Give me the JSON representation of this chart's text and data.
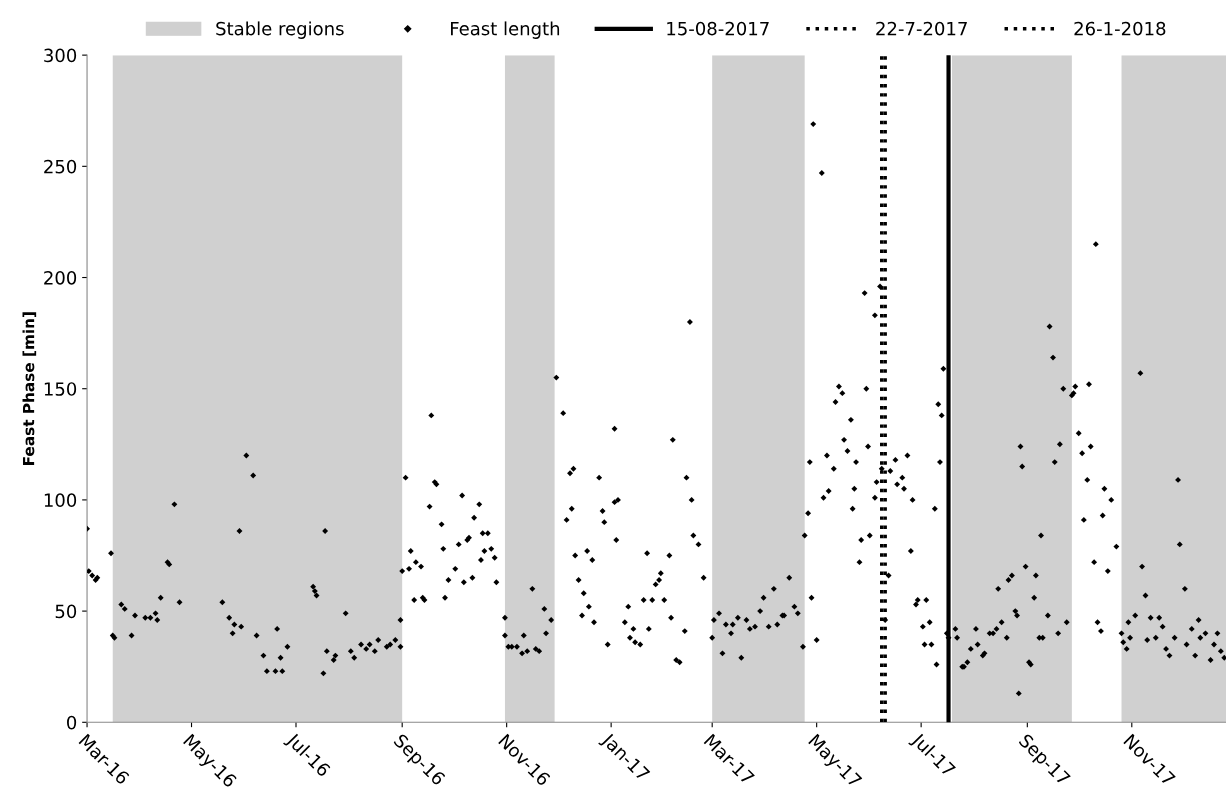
{
  "chart_data": {
    "type": "scatter",
    "ylabel": "Feast Phase [min]",
    "xlim": [
      "2016-03-01",
      "2017-12-26"
    ],
    "ylim": [
      0,
      300
    ],
    "yticks": [
      0,
      50,
      100,
      150,
      200,
      250,
      300
    ],
    "xticks": [
      {
        "value": "2016-03-01",
        "label": "Mar-16"
      },
      {
        "value": "2016-05-01",
        "label": "May-16"
      },
      {
        "value": "2016-07-01",
        "label": "Jul-16"
      },
      {
        "value": "2016-09-01",
        "label": "Sep-16"
      },
      {
        "value": "2016-11-01",
        "label": "Nov-16"
      },
      {
        "value": "2017-01-01",
        "label": "Jan-17"
      },
      {
        "value": "2017-03-01",
        "label": "Mar-17"
      },
      {
        "value": "2017-05-01",
        "label": "May-17"
      },
      {
        "value": "2017-07-01",
        "label": "Jul-17"
      },
      {
        "value": "2017-09-01",
        "label": "Sep-17"
      },
      {
        "value": "2017-11-01",
        "label": "Nov-17"
      }
    ],
    "grid": false,
    "legend": "top",
    "marker": "diamond",
    "bands": [
      {
        "axis": "x",
        "from": "2016-03-16",
        "to": "2016-09-01",
        "label": "Stable regions",
        "color": "#d0d0d0"
      },
      {
        "axis": "x",
        "from": "2016-10-31",
        "to": "2016-11-29",
        "color": "#d0d0d0"
      },
      {
        "axis": "x",
        "from": "2017-03-01",
        "to": "2017-04-24",
        "color": "#d0d0d0"
      },
      {
        "axis": "x",
        "from": "2017-07-19",
        "to": "2017-09-27",
        "color": "#d0d0d0"
      },
      {
        "axis": "x",
        "from": "2017-10-26",
        "to": "2017-12-26",
        "color": "#d0d0d0"
      }
    ],
    "ref_lines": [
      {
        "axis": "x",
        "value": "2017-07-17",
        "label": "15-08-2017",
        "color": "#000000",
        "line_style": "solid"
      },
      {
        "axis": "x",
        "value": "2017-06-08",
        "label": "22-7-2017",
        "color": "#000000",
        "line_style": "dotted"
      },
      {
        "axis": "x",
        "value": "2017-06-10",
        "label": "26-1-2018",
        "color": "#000000",
        "line_style": "dotted"
      }
    ],
    "series": [
      {
        "name": "Feast length",
        "color": "#000000",
        "x": [
          "2016-03-01",
          "2016-03-02",
          "2016-03-04",
          "2016-03-06",
          "2016-03-07",
          "2016-03-15",
          "2016-03-16",
          "2016-03-17",
          "2016-03-21",
          "2016-03-23",
          "2016-03-27",
          "2016-03-29",
          "2016-04-04",
          "2016-04-07",
          "2016-04-10",
          "2016-04-11",
          "2016-04-13",
          "2016-04-17",
          "2016-04-18",
          "2016-04-21",
          "2016-04-24",
          "2016-05-19",
          "2016-05-23",
          "2016-05-25",
          "2016-05-26",
          "2016-05-29",
          "2016-05-30",
          "2016-06-02",
          "2016-06-06",
          "2016-06-08",
          "2016-06-12",
          "2016-06-14",
          "2016-06-19",
          "2016-06-20",
          "2016-06-22",
          "2016-06-23",
          "2016-06-26",
          "2016-07-11",
          "2016-07-12",
          "2016-07-13",
          "2016-07-17",
          "2016-07-18",
          "2016-07-19",
          "2016-07-23",
          "2016-07-24",
          "2016-07-30",
          "2016-08-02",
          "2016-08-04",
          "2016-08-08",
          "2016-08-11",
          "2016-08-13",
          "2016-08-16",
          "2016-08-18",
          "2016-08-23",
          "2016-08-25",
          "2016-08-28",
          "2016-08-31",
          "2016-08-31",
          "2016-09-01",
          "2016-09-03",
          "2016-09-05",
          "2016-09-06",
          "2016-09-08",
          "2016-09-09",
          "2016-09-12",
          "2016-09-13",
          "2016-09-14",
          "2016-09-17",
          "2016-09-18",
          "2016-09-20",
          "2016-09-21",
          "2016-09-24",
          "2016-09-25",
          "2016-09-26",
          "2016-09-28",
          "2016-10-02",
          "2016-10-04",
          "2016-10-06",
          "2016-10-07",
          "2016-10-09",
          "2016-10-10",
          "2016-10-12",
          "2016-10-13",
          "2016-10-16",
          "2016-10-17",
          "2016-10-18",
          "2016-10-19",
          "2016-10-21",
          "2016-10-23",
          "2016-10-25",
          "2016-10-26",
          "2016-10-31",
          "2016-10-31",
          "2016-11-02",
          "2016-11-04",
          "2016-11-07",
          "2016-11-10",
          "2016-11-11",
          "2016-11-13",
          "2016-11-16",
          "2016-11-18",
          "2016-11-20",
          "2016-11-23",
          "2016-11-24",
          "2016-11-27",
          "2016-11-30",
          "2016-12-04",
          "2016-12-06",
          "2016-12-08",
          "2016-12-09",
          "2016-12-10",
          "2016-12-11",
          "2016-12-13",
          "2016-12-15",
          "2016-12-16",
          "2016-12-18",
          "2016-12-19",
          "2016-12-21",
          "2016-12-22",
          "2016-12-25",
          "2016-12-27",
          "2016-12-28",
          "2016-12-30",
          "2017-01-03",
          "2017-01-03",
          "2017-01-04",
          "2017-01-05",
          "2017-01-09",
          "2017-01-11",
          "2017-01-12",
          "2017-01-14",
          "2017-01-15",
          "2017-01-18",
          "2017-01-20",
          "2017-01-22",
          "2017-01-23",
          "2017-01-25",
          "2017-01-27",
          "2017-01-29",
          "2017-01-30",
          "2017-02-01",
          "2017-02-04",
          "2017-02-05",
          "2017-02-06",
          "2017-02-08",
          "2017-02-10",
          "2017-02-13",
          "2017-02-14",
          "2017-02-16",
          "2017-02-17",
          "2017-02-18",
          "2017-02-21",
          "2017-02-24",
          "2017-03-01",
          "2017-03-02",
          "2017-03-05",
          "2017-03-07",
          "2017-03-09",
          "2017-03-12",
          "2017-03-13",
          "2017-03-16",
          "2017-03-18",
          "2017-03-21",
          "2017-03-23",
          "2017-03-26",
          "2017-03-29",
          "2017-03-31",
          "2017-04-03",
          "2017-04-06",
          "2017-04-08",
          "2017-04-11",
          "2017-04-12",
          "2017-04-15",
          "2017-04-18",
          "2017-04-20",
          "2017-04-23",
          "2017-04-24",
          "2017-04-26",
          "2017-04-27",
          "2017-04-28",
          "2017-04-29",
          "2017-05-01",
          "2017-05-04",
          "2017-05-05",
          "2017-05-07",
          "2017-05-08",
          "2017-05-11",
          "2017-05-12",
          "2017-05-14",
          "2017-05-16",
          "2017-05-17",
          "2017-05-19",
          "2017-05-21",
          "2017-05-22",
          "2017-05-23",
          "2017-05-24",
          "2017-05-26",
          "2017-05-27",
          "2017-05-29",
          "2017-05-30",
          "2017-05-31",
          "2017-06-01",
          "2017-06-04",
          "2017-06-04",
          "2017-06-05",
          "2017-06-07",
          "2017-06-08",
          "2017-06-10",
          "2017-06-12",
          "2017-06-13",
          "2017-06-16",
          "2017-06-17",
          "2017-06-20",
          "2017-06-21",
          "2017-06-23",
          "2017-06-25",
          "2017-06-26",
          "2017-06-28",
          "2017-06-29",
          "2017-07-02",
          "2017-07-03",
          "2017-07-04",
          "2017-07-06",
          "2017-07-07",
          "2017-07-09",
          "2017-07-10",
          "2017-07-11",
          "2017-07-12",
          "2017-07-13",
          "2017-07-14",
          "2017-07-16",
          "2017-07-17",
          "2017-07-21",
          "2017-07-22",
          "2017-07-25",
          "2017-07-26",
          "2017-07-28",
          "2017-07-30",
          "2017-08-02",
          "2017-08-03",
          "2017-08-06",
          "2017-08-07",
          "2017-08-10",
          "2017-08-12",
          "2017-08-14",
          "2017-08-15",
          "2017-08-17",
          "2017-08-20",
          "2017-08-21",
          "2017-08-23",
          "2017-08-25",
          "2017-08-26",
          "2017-08-27",
          "2017-08-28",
          "2017-08-29",
          "2017-08-31",
          "2017-09-02",
          "2017-09-03",
          "2017-09-05",
          "2017-09-06",
          "2017-09-08",
          "2017-09-09",
          "2017-09-10",
          "2017-09-13",
          "2017-09-14",
          "2017-09-16",
          "2017-09-17",
          "2017-09-19",
          "2017-09-20",
          "2017-09-22",
          "2017-09-24",
          "2017-09-27",
          "2017-09-28",
          "2017-09-29",
          "2017-10-01",
          "2017-10-03",
          "2017-10-04",
          "2017-10-06",
          "2017-10-07",
          "2017-10-08",
          "2017-10-10",
          "2017-10-11",
          "2017-10-12",
          "2017-10-14",
          "2017-10-15",
          "2017-10-16",
          "2017-10-18",
          "2017-10-20",
          "2017-10-23",
          "2017-10-26",
          "2017-10-27",
          "2017-10-29",
          "2017-10-30",
          "2017-10-31",
          "2017-11-03",
          "2017-11-06",
          "2017-11-07",
          "2017-11-09",
          "2017-11-10",
          "2017-11-12",
          "2017-11-15",
          "2017-11-17",
          "2017-11-19",
          "2017-11-21",
          "2017-11-23",
          "2017-11-26",
          "2017-11-28",
          "2017-11-29",
          "2017-12-02",
          "2017-12-03",
          "2017-12-06",
          "2017-12-08",
          "2017-12-10",
          "2017-12-11",
          "2017-12-14",
          "2017-12-17",
          "2017-12-19",
          "2017-12-21",
          "2017-12-23",
          "2017-12-25"
        ],
        "values": [
          87,
          68,
          66,
          64,
          65,
          76,
          39,
          38,
          53,
          51,
          39,
          48,
          47,
          47,
          49,
          46,
          56,
          72,
          71,
          98,
          54,
          54,
          47,
          40,
          44,
          86,
          43,
          120,
          111,
          39,
          30,
          23,
          23,
          42,
          29,
          23,
          34,
          61,
          59,
          57,
          22,
          86,
          32,
          28,
          30,
          49,
          32,
          29,
          35,
          33,
          35,
          32,
          37,
          34,
          35,
          37,
          34,
          46,
          68,
          110,
          69,
          77,
          55,
          72,
          70,
          56,
          55,
          97,
          138,
          108,
          107,
          89,
          78,
          56,
          64,
          69,
          80,
          102,
          63,
          82,
          83,
          65,
          92,
          98,
          73,
          85,
          77,
          85,
          78,
          74,
          63,
          47,
          39,
          34,
          34,
          34,
          31,
          39,
          32,
          60,
          33,
          32,
          51,
          40,
          46,
          155,
          139,
          91,
          112,
          96,
          114,
          75,
          64,
          48,
          58,
          77,
          52,
          73,
          45,
          110,
          95,
          90,
          35,
          132,
          99,
          82,
          100,
          45,
          52,
          38,
          42,
          36,
          35,
          55,
          76,
          42,
          55,
          62,
          64,
          67,
          55,
          75,
          47,
          127,
          28,
          27,
          41,
          110,
          180,
          100,
          84,
          80,
          65,
          38,
          46,
          49,
          31,
          44,
          40,
          44,
          47,
          29,
          46,
          42,
          43,
          50,
          56,
          43,
          60,
          44,
          48,
          48,
          65,
          52,
          49,
          34,
          84,
          94,
          117,
          56,
          269,
          37,
          247,
          101,
          120,
          104,
          114,
          144,
          151,
          148,
          127,
          122,
          136,
          96,
          105,
          117,
          72,
          82,
          193,
          150,
          124,
          84,
          101,
          183,
          108,
          196,
          114,
          46,
          66,
          113,
          118,
          107,
          110,
          105,
          120,
          77,
          100,
          53,
          55,
          43,
          35,
          55,
          45,
          35,
          96,
          26,
          143,
          117,
          138,
          159,
          40,
          38,
          42,
          38,
          25,
          25,
          27,
          33,
          42,
          35,
          30,
          31,
          40,
          40,
          42,
          60,
          45,
          38,
          64,
          66,
          50,
          48,
          13,
          124,
          115,
          70,
          27,
          26,
          56,
          66,
          38,
          84,
          38,
          48,
          178,
          164,
          117,
          40,
          125,
          150,
          45,
          147,
          148,
          151,
          130,
          121,
          91,
          109,
          152,
          124,
          72,
          215,
          45,
          41,
          93,
          105,
          68,
          100,
          79,
          40,
          36,
          33,
          45,
          38,
          48,
          157,
          70,
          57,
          37,
          47,
          38,
          47,
          43,
          33,
          30,
          38,
          109,
          80,
          60,
          35,
          42,
          30,
          46,
          38,
          40,
          28,
          35,
          40,
          32,
          29
        ]
      }
    ]
  }
}
